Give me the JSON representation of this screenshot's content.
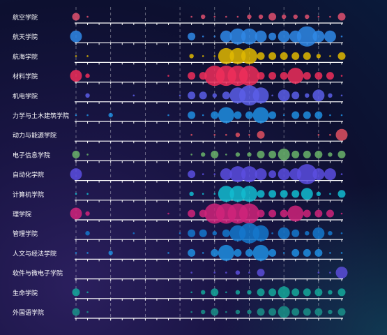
{
  "chart_data": {
    "type": "scatter",
    "title": "",
    "rows": [
      {
        "label": "航空学院",
        "color": "#e0506e",
        "sizes": [
          3,
          1,
          0,
          0,
          0,
          0,
          0,
          0,
          0,
          0,
          1,
          2,
          1,
          1,
          1,
          2,
          2,
          3,
          2,
          2,
          2,
          1,
          1,
          3
        ]
      },
      {
        "label": "航天学院",
        "color": "#2f88e6",
        "sizes": [
          4,
          0,
          0,
          0,
          0,
          0,
          0,
          0,
          0,
          0,
          3,
          1,
          1,
          4,
          5,
          5,
          4,
          3,
          4,
          4,
          6,
          4,
          4,
          1
        ]
      },
      {
        "label": "航海学院",
        "color": "#e0b800",
        "sizes": [
          1,
          1,
          0,
          0,
          0,
          0,
          0,
          0,
          0,
          0,
          2,
          1,
          1,
          5,
          5,
          5,
          3,
          3,
          3,
          3,
          3,
          2,
          1,
          3
        ]
      },
      {
        "label": "材料学院",
        "color": "#ee2e5a",
        "sizes": [
          4,
          2,
          0,
          0,
          0,
          0,
          0,
          0,
          1,
          0,
          3,
          3,
          6,
          6,
          6,
          6,
          3,
          3,
          3,
          5,
          3,
          3,
          3,
          1
        ]
      },
      {
        "label": "机电学院",
        "color": "#5a5ee8",
        "sizes": [
          0,
          2,
          0,
          0,
          0,
          1,
          0,
          0,
          0,
          1,
          3,
          3,
          2,
          3,
          5,
          6,
          5,
          1,
          4,
          3,
          2,
          4,
          2,
          1
        ]
      },
      {
        "label": "力学与土木建筑学院",
        "color": "#1f8ee0",
        "sizes": [
          1,
          1,
          0,
          2,
          0,
          0,
          0,
          0,
          1,
          0,
          3,
          1,
          3,
          5,
          3,
          3,
          5,
          3,
          1,
          3,
          3,
          3,
          1,
          1
        ]
      },
      {
        "label": "动力与能源学院",
        "color": "#e05060",
        "sizes": [
          0,
          0,
          0,
          0,
          0,
          0,
          0,
          0,
          0,
          0,
          1,
          0,
          1,
          1,
          2,
          1,
          3,
          0,
          0,
          0,
          0,
          1,
          1,
          4
        ]
      },
      {
        "label": "电子信息学院",
        "color": "#6ab46a",
        "sizes": [
          3,
          1,
          0,
          0,
          0,
          0,
          0,
          0,
          0,
          0,
          1,
          2,
          3,
          1,
          2,
          2,
          3,
          3,
          4,
          3,
          3,
          3,
          2,
          3
        ]
      },
      {
        "label": "自动化学院",
        "color": "#5a4ee0",
        "sizes": [
          4,
          0,
          0,
          0,
          0,
          0,
          0,
          0,
          0,
          0,
          3,
          1,
          1,
          4,
          5,
          5,
          4,
          3,
          4,
          4,
          6,
          4,
          4,
          1
        ]
      },
      {
        "label": "计算机学院",
        "color": "#12bcd0",
        "sizes": [
          1,
          1,
          0,
          0,
          0,
          0,
          0,
          0,
          0,
          0,
          2,
          1,
          1,
          5,
          5,
          5,
          3,
          3,
          3,
          3,
          4,
          2,
          1,
          3
        ]
      },
      {
        "label": "理学院",
        "color": "#d0237a",
        "sizes": [
          4,
          2,
          0,
          0,
          0,
          0,
          0,
          0,
          1,
          0,
          3,
          3,
          6,
          6,
          6,
          6,
          3,
          3,
          3,
          5,
          3,
          3,
          3,
          1
        ]
      },
      {
        "label": "管理学院",
        "color": "#1478cc",
        "sizes": [
          0,
          2,
          0,
          0,
          0,
          1,
          0,
          0,
          0,
          1,
          3,
          3,
          2,
          3,
          5,
          6,
          5,
          1,
          4,
          3,
          2,
          4,
          2,
          1
        ]
      },
      {
        "label": "人文与经法学院",
        "color": "#1f8ee0",
        "sizes": [
          1,
          1,
          0,
          2,
          0,
          0,
          0,
          0,
          1,
          0,
          3,
          1,
          3,
          5,
          3,
          3,
          5,
          3,
          1,
          3,
          3,
          3,
          1,
          1
        ]
      },
      {
        "label": "软件与微电子学院",
        "color": "#5a4ed8",
        "sizes": [
          0,
          0,
          0,
          0,
          0,
          0,
          0,
          0,
          0,
          0,
          1,
          0,
          1,
          1,
          2,
          1,
          3,
          0,
          0,
          0,
          0,
          1,
          1,
          4
        ]
      },
      {
        "label": "生命学院",
        "color": "#14a89a",
        "sizes": [
          3,
          1,
          0,
          0,
          0,
          0,
          0,
          0,
          0,
          0,
          1,
          2,
          3,
          1,
          2,
          2,
          3,
          3,
          4,
          3,
          3,
          3,
          2,
          3
        ]
      },
      {
        "label": "外国语学院",
        "color": "#1a9088",
        "sizes": [
          3,
          1,
          0,
          0,
          0,
          0,
          0,
          0,
          0,
          0,
          1,
          2,
          3,
          1,
          2,
          2,
          3,
          3,
          4,
          3,
          3,
          3,
          2,
          3
        ]
      }
    ],
    "x_count": 24,
    "grid": "dashed-vertical",
    "legend": "none"
  }
}
